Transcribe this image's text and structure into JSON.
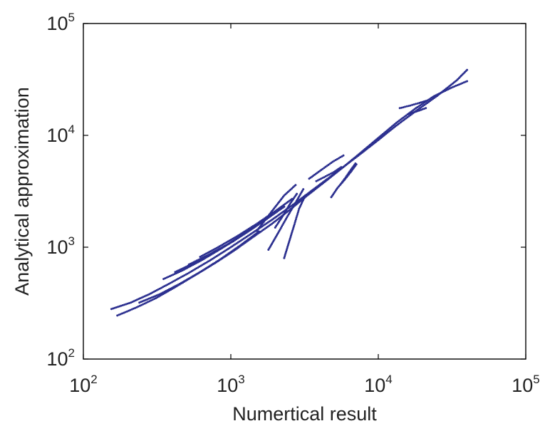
{
  "chart_data": {
    "type": "scatter",
    "xlabel": "Numertical result",
    "ylabel": "Analytical approximation",
    "x_scale": "log",
    "y_scale": "log",
    "xlim": [
      100,
      100000
    ],
    "ylim": [
      100,
      100000
    ],
    "grid": false,
    "marker_color": "#2b2f8f",
    "xticks": [
      {
        "base": "10",
        "exp": "2",
        "value": 100
      },
      {
        "base": "10",
        "exp": "3",
        "value": 1000
      },
      {
        "base": "10",
        "exp": "4",
        "value": 10000
      },
      {
        "base": "10",
        "exp": "5",
        "value": 100000
      }
    ],
    "yticks": [
      {
        "base": "10",
        "exp": "2",
        "value": 100
      },
      {
        "base": "10",
        "exp": "3",
        "value": 1000
      },
      {
        "base": "10",
        "exp": "4",
        "value": 10000
      },
      {
        "base": "10",
        "exp": "5",
        "value": 100000
      }
    ],
    "series": [
      {
        "x": [
          155,
          210,
          280,
          380,
          520,
          720,
          1000,
          1400,
          1950,
          2700,
          3700,
          5100,
          7000,
          9600,
          13000,
          18000,
          25000,
          34000,
          40000
        ],
        "y": [
          280,
          320,
          380,
          470,
          590,
          760,
          1000,
          1340,
          1800,
          2450,
          3350,
          4600,
          6300,
          8700,
          12000,
          16500,
          22500,
          31000,
          38500
        ]
      },
      {
        "x": [
          170,
          230,
          310,
          420,
          570,
          780,
          1050,
          1400,
          1900,
          2500,
          3300,
          4400,
          5900,
          7800,
          10300,
          13500,
          18000,
          24000,
          32000,
          40000
        ],
        "y": [
          245,
          290,
          350,
          440,
          560,
          720,
          930,
          1220,
          1620,
          2150,
          2900,
          3900,
          5300,
          7200,
          9800,
          13200,
          17500,
          22500,
          27000,
          30500
        ]
      },
      {
        "x": [
          240,
          330,
          450,
          620,
          850,
          1150,
          1550
        ],
        "y": [
          320,
          380,
          470,
          600,
          780,
          1030,
          1380
        ]
      },
      {
        "x": [
          350,
          470,
          640,
          870,
          1180,
          1600
        ],
        "y": [
          520,
          620,
          770,
          980,
          1270,
          1680
        ]
      },
      {
        "x": [
          420,
          560,
          760,
          1040,
          1400,
          1900
        ],
        "y": [
          600,
          720,
          890,
          1130,
          1470,
          1950
        ]
      },
      {
        "x": [
          520,
          700,
          950,
          1280,
          1720,
          2300
        ],
        "y": [
          700,
          850,
          1060,
          1350,
          1760,
          2300
        ]
      },
      {
        "x": [
          620,
          820,
          1100,
          1480,
          1980,
          2600
        ],
        "y": [
          820,
          1000,
          1250,
          1600,
          2080,
          2700
        ]
      },
      {
        "x": [
          1500,
          1900,
          2300,
          2750
        ],
        "y": [
          1400,
          2100,
          2900,
          3600
        ]
      },
      {
        "x": [
          1800,
          2100,
          2400,
          2750,
          3100
        ],
        "y": [
          950,
          1350,
          1850,
          2500,
          3300
        ]
      },
      {
        "x": [
          2000,
          2250,
          2500,
          2800
        ],
        "y": [
          1500,
          1900,
          2400,
          3000
        ]
      },
      {
        "x": [
          2300,
          2500,
          2700,
          2900,
          3200
        ],
        "y": [
          800,
          1150,
          1600,
          2200,
          2900
        ]
      },
      {
        "x": [
          3400,
          4100,
          4900,
          5800
        ],
        "y": [
          4100,
          4900,
          5800,
          6600
        ]
      },
      {
        "x": [
          3800,
          4400,
          5000,
          5600
        ],
        "y": [
          3900,
          4300,
          4700,
          5200
        ]
      },
      {
        "x": [
          4800,
          5300,
          5900,
          6500,
          7100
        ],
        "y": [
          2800,
          3400,
          4000,
          4700,
          5500
        ]
      },
      {
        "x": [
          5500,
          6000,
          6500,
          7000
        ],
        "y": [
          3600,
          4200,
          4900,
          5600
        ]
      },
      {
        "x": [
          14000,
          16500,
          19000,
          21500
        ],
        "y": [
          17500,
          18500,
          19500,
          20500
        ]
      },
      {
        "x": [
          16000,
          18500,
          21000
        ],
        "y": [
          15500,
          16500,
          17500
        ]
      }
    ]
  }
}
